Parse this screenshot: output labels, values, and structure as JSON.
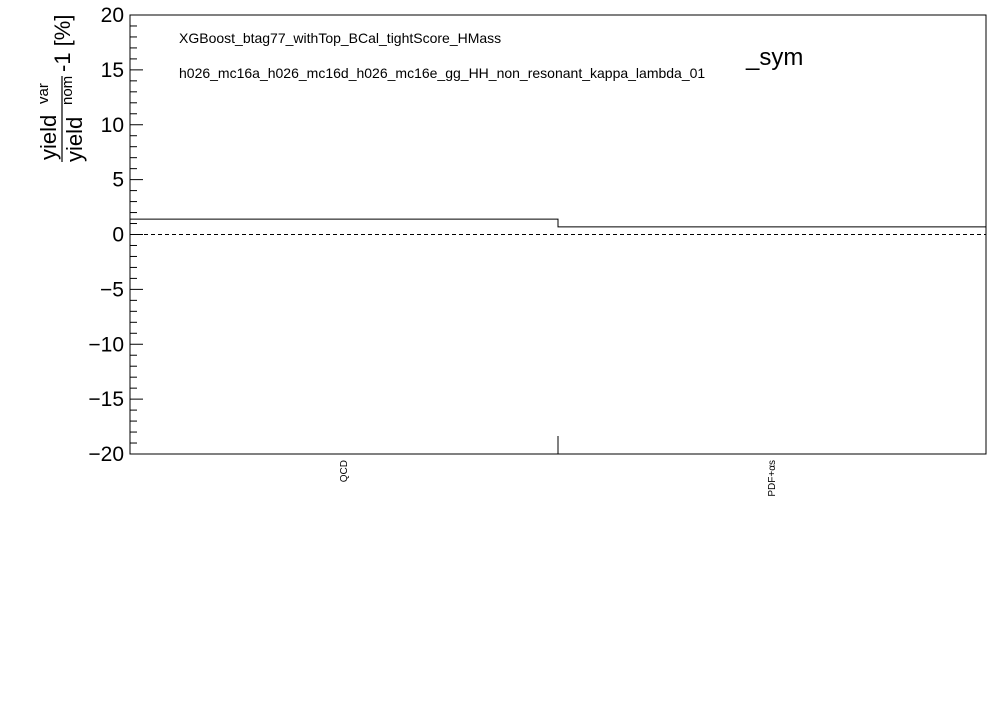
{
  "chart_data": {
    "type": "bar",
    "style": "step-histogram",
    "categories": [
      "QCD",
      "PDF+αs"
    ],
    "values": [
      1.4,
      0.7
    ],
    "ylim": [
      -20,
      20
    ],
    "yticks": [
      "20",
      "15",
      "10",
      "5",
      "0",
      "−5",
      "−10",
      "−15",
      "−20"
    ],
    "ylabel": {
      "numerator": "yield",
      "numerator_sup": "var",
      "denominator": "yield",
      "denominator_sup": "nom",
      "suffix": "-1 [%]"
    },
    "reference_line": {
      "y": 0,
      "style": "dashed"
    },
    "annotations": {
      "line1": "XGBoost_btag77_withTop_BCal_tightScore_HMass",
      "line2": "h026_mc16a_h026_mc16d_h026_mc16e_gg_HH_non_resonant_kappa_lambda_01",
      "suffix": "_sym"
    },
    "grid": false,
    "colors": {
      "line": "#000000",
      "background": "#ffffff"
    }
  }
}
